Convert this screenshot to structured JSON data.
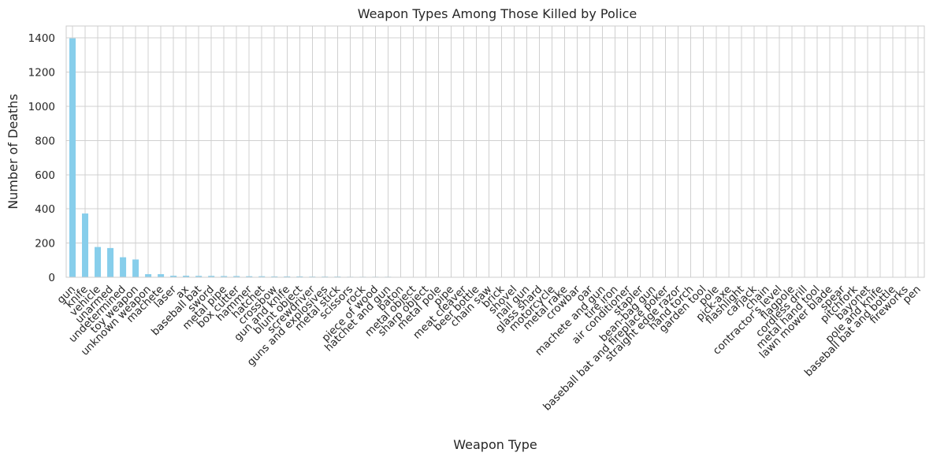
{
  "chart_data": {
    "type": "bar",
    "title": "Weapon Types Among Those Killed by Police",
    "xlabel": "Weapon Type",
    "ylabel": "Number of Deaths",
    "ylim": [
      0,
      1470
    ],
    "yticks": [
      0,
      200,
      400,
      600,
      800,
      1000,
      1200,
      1400
    ],
    "grid": true,
    "bar_color": "#87CEEB",
    "categories": [
      "gun",
      "knife",
      "vehicle",
      "unarmed",
      "undetermined",
      "toy weapon",
      "unknown weapon",
      "machete",
      "laser",
      "ax",
      "baseball bat",
      "sword",
      "metal pipe",
      "box cutter",
      "hammer",
      "hatchet",
      "crossbow",
      "gun and knife",
      "blunt object",
      "screwdriver",
      "guns and explosives",
      "metal stick",
      "scissors",
      "rock",
      "piece of wood",
      "hatchet and gun",
      "baton",
      "metal object",
      "sharp object",
      "metal pole",
      "pipe",
      "meat cleaver",
      "beer bottle",
      "chain saw",
      "brick",
      "shovel",
      "nail gun",
      "glass shard",
      "motorcycle",
      "metal rake",
      "crowbar",
      "oar",
      "machete and gun",
      "tire iron",
      "air conditioner",
      "stapler",
      "bean-bag gun",
      "baseball bat and fireplace poker",
      "straight edge razor",
      "hand torch",
      "garden tool",
      "pole",
      "pick-axe",
      "flashlight",
      "carjack",
      "chain",
      "contractor's level",
      "flagpole",
      "cordless drill",
      "metal hand tool",
      "lawn mower blade",
      "spear",
      "pitchfork",
      "bayonet",
      "pole and knife",
      "baseball bat and bottle",
      "fireworks",
      "pen"
    ],
    "values": [
      1398,
      373,
      177,
      171,
      117,
      104,
      18,
      18,
      9,
      9,
      8,
      8,
      7,
      7,
      6,
      6,
      5,
      5,
      5,
      4,
      4,
      4,
      3,
      3,
      3,
      3,
      2,
      2,
      2,
      2,
      2,
      2,
      2,
      2,
      2,
      2,
      2,
      2,
      2,
      2,
      2,
      2,
      2,
      1,
      1,
      1,
      1,
      1,
      1,
      1,
      1,
      1,
      1,
      1,
      1,
      1,
      1,
      1,
      1,
      1,
      1,
      1,
      1,
      1,
      1,
      1,
      1,
      1
    ]
  }
}
